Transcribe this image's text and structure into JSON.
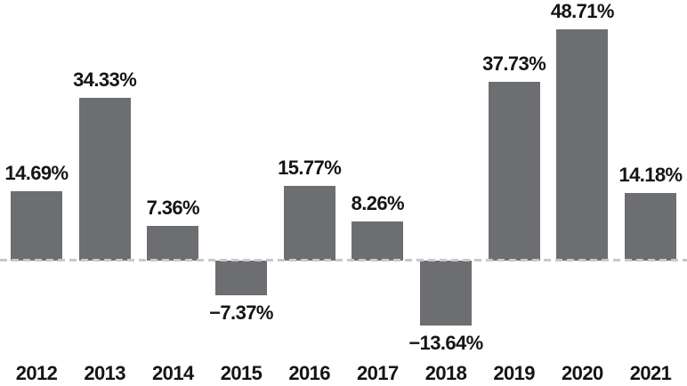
{
  "colors": {
    "background": "#ffffff",
    "bar": "#6d6e71",
    "baseline": "#c8c8c8",
    "text": "#141414"
  },
  "chart_data": {
    "type": "bar",
    "title": "",
    "xlabel": "",
    "ylabel": "",
    "categories": [
      "2012",
      "2013",
      "2014",
      "2015",
      "2016",
      "2017",
      "2018",
      "2019",
      "2020",
      "2021"
    ],
    "values": [
      14.69,
      34.33,
      7.36,
      -7.37,
      15.77,
      8.26,
      -13.64,
      37.73,
      48.71,
      14.18
    ],
    "value_labels": [
      "14.69%",
      "34.33%",
      "7.36%",
      "−7.37%",
      "15.77%",
      "8.26%",
      "−13.64%",
      "37.73%",
      "48.71%",
      "14.18%"
    ],
    "ylim": [
      -20,
      55
    ],
    "grid": false,
    "legend": "none",
    "baseline_value": 0,
    "baseline_style": "dashed",
    "bar_color": "#6d6e71",
    "value_label_position": "outside-end",
    "x_axis_position": "bottom"
  }
}
